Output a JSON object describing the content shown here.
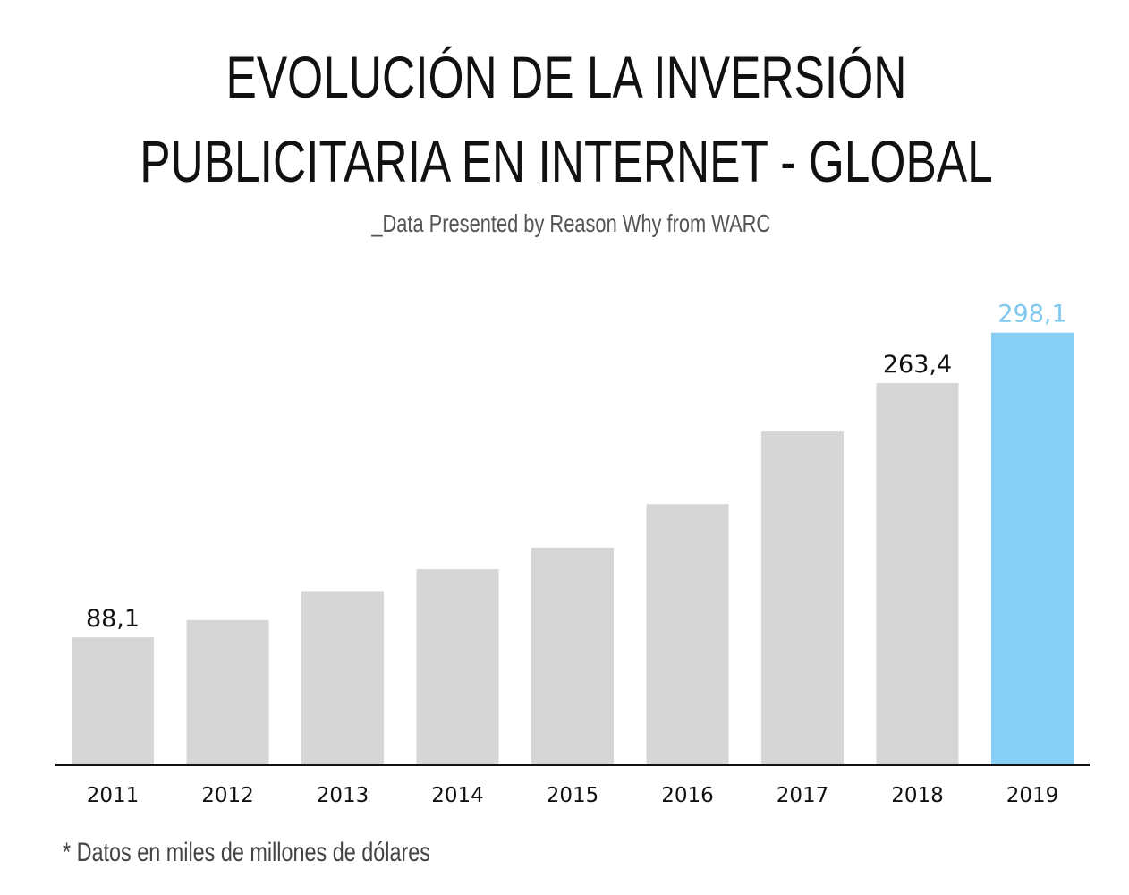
{
  "chart_data": {
    "type": "bar",
    "title_line1": "EVOLUCIÓN DE LA INVERSIÓN",
    "title_line2": "PUBLICITARIA EN INTERNET - GLOBAL",
    "subtitle": "_Data Presented by Reason Why from WARC",
    "footnote": "* Datos en miles de millones de dólares",
    "categories": [
      "2011",
      "2012",
      "2013",
      "2014",
      "2015",
      "2016",
      "2017",
      "2018",
      "2019"
    ],
    "values": [
      88.1,
      100,
      120,
      135,
      150,
      180,
      230,
      263.4,
      298.1
    ],
    "data_labels": {
      "0": "88,1",
      "7": "263,4",
      "8": "298,1"
    },
    "highlight_index": 8,
    "ylim": [
      0,
      330
    ],
    "xlabel": "",
    "ylabel": "",
    "grid": false,
    "colors": {
      "bar": "#d6d6d6",
      "highlight": "#87cef5",
      "highlight_label": "#7ec8f0",
      "label": "#111111",
      "axis": "#111111"
    }
  }
}
